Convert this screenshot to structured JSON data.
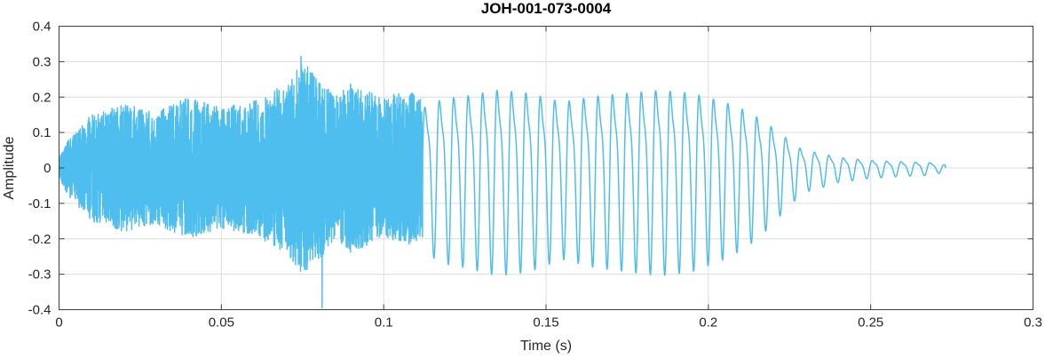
{
  "chart_data": {
    "type": "line",
    "title": "JOH-001-073-0004",
    "xlabel": "Time (s)",
    "ylabel": "Amplitude",
    "xlim": [
      0,
      0.3
    ],
    "ylim": [
      -0.4,
      0.4
    ],
    "xticks": [
      0,
      0.05,
      0.1,
      0.15,
      0.2,
      0.25,
      0.3
    ],
    "xtick_labels": [
      "0",
      "0.05",
      "0.1",
      "0.15",
      "0.2",
      "0.25",
      "0.3"
    ],
    "yticks": [
      -0.4,
      -0.3,
      -0.2,
      -0.1,
      0,
      0.1,
      0.2,
      0.3,
      0.4
    ],
    "ytick_labels": [
      "-0.4",
      "-0.3",
      "-0.2",
      "-0.1",
      "0",
      "0.1",
      "0.2",
      "0.3",
      "0.4"
    ],
    "grid": true,
    "legend": "none",
    "line_color": "#4DBEEE",
    "axis_color": "#3f3f3f",
    "grid_color": "#dcdcdc",
    "signal": {
      "description": "speech-like waveform: broadband noisy burst 0 to 0.112 s, quasi-periodic voiced tone 0.112 to 0.273 s with decaying tail",
      "segments": [
        {
          "kind": "noise",
          "t_start": 0.0,
          "t_end": 0.112,
          "envelope": [
            [
              0.0,
              0.03
            ],
            [
              0.003,
              0.08
            ],
            [
              0.01,
              0.15
            ],
            [
              0.02,
              0.18
            ],
            [
              0.03,
              0.16
            ],
            [
              0.04,
              0.2
            ],
            [
              0.05,
              0.17
            ],
            [
              0.06,
              0.19
            ],
            [
              0.07,
              0.24
            ],
            [
              0.075,
              0.3
            ],
            [
              0.08,
              0.26
            ],
            [
              0.085,
              0.2
            ],
            [
              0.09,
              0.24
            ],
            [
              0.1,
              0.2
            ],
            [
              0.108,
              0.22
            ],
            [
              0.112,
              0.2
            ]
          ]
        },
        {
          "kind": "tone",
          "t_start": 0.112,
          "t_end": 0.273,
          "frequency_hz": 225,
          "envelope": [
            [
              0.112,
              0.2
            ],
            [
              0.118,
              0.23
            ],
            [
              0.125,
              0.24
            ],
            [
              0.135,
              0.26
            ],
            [
              0.145,
              0.25
            ],
            [
              0.155,
              0.22
            ],
            [
              0.165,
              0.24
            ],
            [
              0.175,
              0.25
            ],
            [
              0.185,
              0.26
            ],
            [
              0.195,
              0.25
            ],
            [
              0.205,
              0.22
            ],
            [
              0.212,
              0.19
            ],
            [
              0.218,
              0.15
            ],
            [
              0.224,
              0.1
            ],
            [
              0.229,
              0.06
            ],
            [
              0.234,
              0.05
            ],
            [
              0.24,
              0.035
            ],
            [
              0.25,
              0.025
            ],
            [
              0.26,
              0.02
            ],
            [
              0.268,
              0.018
            ],
            [
              0.273,
              0.01
            ]
          ]
        }
      ],
      "notable_peaks": [
        {
          "t": 0.0745,
          "v": 0.315
        },
        {
          "t": 0.081,
          "v": -0.395
        }
      ]
    }
  }
}
